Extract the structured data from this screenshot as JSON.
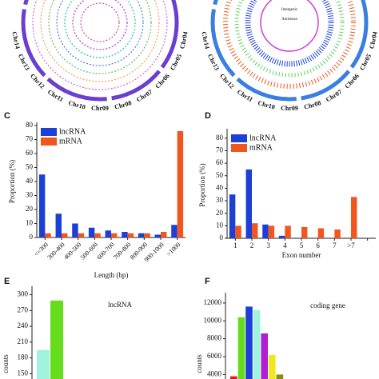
{
  "circos": [
    {
      "labels": [
        "Chr14",
        "Chr13",
        "Chr12",
        "Chr11",
        "Chr10",
        "Chr09",
        "Chr08",
        "Chr07",
        "Chr06",
        "Chr05",
        "Chr04"
      ]
    },
    {
      "labels": [
        "Chr14",
        "Chr13",
        "Chr12",
        "Chr11",
        "Chr10",
        "Chr09",
        "Chr08",
        "Chr07",
        "Chr06",
        "Chr05",
        "Chr04"
      ],
      "inner": [
        "Intergenic",
        "Antisense"
      ]
    }
  ],
  "chart_data": [
    {
      "type": "bar",
      "panel": "C",
      "xlabel": "Length (bp)",
      "ylabel": "Proportion (%)",
      "categories": [
        "<=300",
        "300-400",
        "400-500",
        "500-600",
        "600-700",
        "700-800",
        "800-900",
        "900-1000",
        ">1000"
      ],
      "series": [
        {
          "name": "lncRNA",
          "color": "#1c3fd6",
          "values": [
            45,
            17,
            10,
            7,
            5,
            4,
            3,
            2,
            9
          ]
        },
        {
          "name": "mRNA",
          "color": "#f0561e",
          "values": [
            3,
            3,
            3,
            3,
            3,
            3,
            3,
            4,
            76
          ]
        }
      ],
      "ylim": [
        0,
        80
      ],
      "yticks": [
        0,
        10,
        20,
        30,
        40,
        50,
        60,
        70,
        80
      ],
      "legend": "top-left"
    },
    {
      "type": "bar",
      "panel": "D",
      "xlabel": "Exon number",
      "ylabel": "Proportion (%)",
      "categories": [
        "1",
        "2",
        "3",
        "4",
        "5",
        "6",
        "7",
        ">7",
        null
      ],
      "series": [
        {
          "name": "lncRNA",
          "color": "#1c3fd6",
          "values": [
            35,
            55,
            11,
            2,
            0,
            0,
            0,
            0,
            null
          ]
        },
        {
          "name": "mRNA",
          "color": "#f0561e",
          "values": [
            10,
            12,
            10,
            10,
            9,
            8,
            7,
            33,
            null
          ]
        }
      ],
      "ylim": [
        0,
        85
      ],
      "yticks": [
        0,
        10,
        20,
        30,
        40,
        50,
        60,
        70,
        80
      ],
      "legend": "top-left"
    },
    {
      "type": "bar",
      "panel": "E",
      "title": "lncRNA",
      "ylabel": "counts",
      "categories": [
        null,
        null
      ],
      "values": [
        195,
        289
      ],
      "colors": [
        "#9ff2dc",
        "#66dd1c"
      ],
      "ylim": [
        140,
        310
      ],
      "yticks": [
        150,
        180,
        210,
        240,
        270,
        300
      ]
    },
    {
      "type": "bar",
      "panel": "F",
      "title": "coding gene",
      "ylabel": "counts",
      "categories": [
        null,
        null,
        null,
        null,
        null,
        null,
        null
      ],
      "values": [
        3800,
        10400,
        11600,
        11200,
        8600,
        6200,
        4000
      ],
      "colors": [
        "#e01818",
        "#66dd1c",
        "#1c3fd6",
        "#9ff2dc",
        "#b020d0",
        "#f0e81c",
        "#8a8a10"
      ],
      "ylim": [
        3500,
        12800
      ],
      "yticks": [
        4000,
        6000,
        8000,
        10000,
        12000
      ]
    }
  ]
}
